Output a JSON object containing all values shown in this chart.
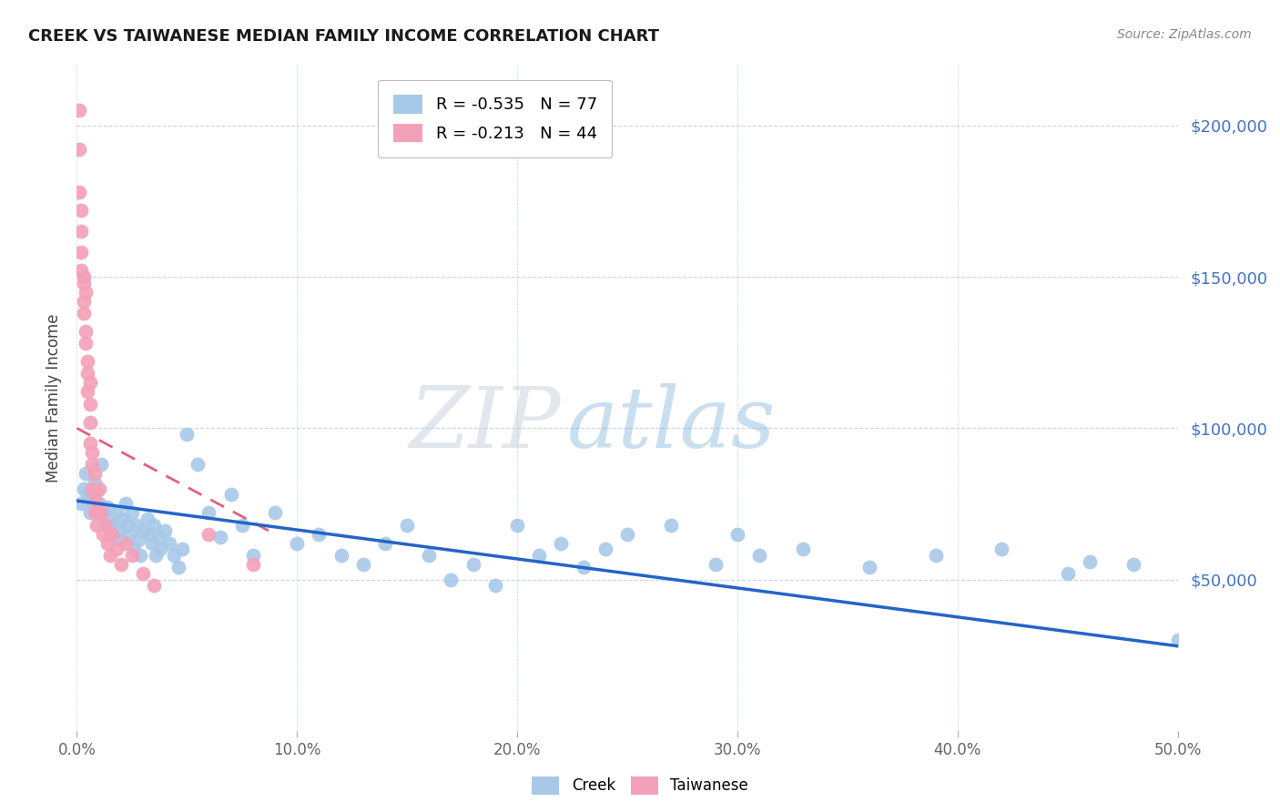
{
  "title": "CREEK VS TAIWANESE MEDIAN FAMILY INCOME CORRELATION CHART",
  "source": "Source: ZipAtlas.com",
  "ylabel": "Median Family Income",
  "xlim": [
    0.0,
    0.5
  ],
  "ylim": [
    0,
    220000
  ],
  "yticks": [
    0,
    50000,
    100000,
    150000,
    200000
  ],
  "ytick_labels": [
    "",
    "$50,000",
    "$100,000",
    "$150,000",
    "$200,000"
  ],
  "xticks": [
    0.0,
    0.1,
    0.2,
    0.3,
    0.4,
    0.5
  ],
  "xtick_labels": [
    "0.0%",
    "10.0%",
    "20.0%",
    "30.0%",
    "40.0%",
    "50.0%"
  ],
  "creek_color": "#a8c8e8",
  "taiwanese_color": "#f4a0b8",
  "creek_line_color": "#2464c8",
  "taiwanese_line_color": "#e06080",
  "creek_R": -0.535,
  "creek_N": 77,
  "taiwanese_R": -0.213,
  "taiwanese_N": 44,
  "background_color": "#ffffff",
  "grid_color": "#c8d4e4",
  "watermark_zip": "ZIP",
  "watermark_atlas": "atlas",
  "creek_x": [
    0.002,
    0.003,
    0.004,
    0.005,
    0.006,
    0.007,
    0.008,
    0.009,
    0.01,
    0.011,
    0.012,
    0.013,
    0.014,
    0.015,
    0.016,
    0.017,
    0.018,
    0.019,
    0.02,
    0.021,
    0.022,
    0.023,
    0.024,
    0.025,
    0.026,
    0.027,
    0.028,
    0.029,
    0.03,
    0.032,
    0.033,
    0.034,
    0.035,
    0.036,
    0.037,
    0.038,
    0.04,
    0.042,
    0.044,
    0.046,
    0.048,
    0.05,
    0.055,
    0.06,
    0.065,
    0.07,
    0.075,
    0.08,
    0.09,
    0.1,
    0.11,
    0.12,
    0.13,
    0.14,
    0.15,
    0.16,
    0.17,
    0.18,
    0.19,
    0.2,
    0.21,
    0.22,
    0.23,
    0.24,
    0.25,
    0.27,
    0.29,
    0.3,
    0.31,
    0.33,
    0.36,
    0.39,
    0.42,
    0.45,
    0.46,
    0.48,
    0.5
  ],
  "creek_y": [
    75000,
    80000,
    85000,
    78000,
    72000,
    76000,
    82000,
    79000,
    75000,
    88000,
    72000,
    68000,
    74000,
    70000,
    65000,
    68000,
    72000,
    66000,
    63000,
    70000,
    75000,
    68000,
    65000,
    72000,
    60000,
    68000,
    63000,
    58000,
    66000,
    70000,
    65000,
    62000,
    68000,
    58000,
    64000,
    60000,
    66000,
    62000,
    58000,
    54000,
    60000,
    98000,
    88000,
    72000,
    64000,
    78000,
    68000,
    58000,
    72000,
    62000,
    65000,
    58000,
    55000,
    62000,
    68000,
    58000,
    50000,
    55000,
    48000,
    68000,
    58000,
    62000,
    54000,
    60000,
    65000,
    68000,
    55000,
    65000,
    58000,
    60000,
    54000,
    58000,
    60000,
    52000,
    56000,
    55000,
    30000
  ],
  "taiwanese_x": [
    0.001,
    0.001,
    0.001,
    0.002,
    0.002,
    0.002,
    0.002,
    0.003,
    0.003,
    0.003,
    0.003,
    0.004,
    0.004,
    0.004,
    0.005,
    0.005,
    0.005,
    0.006,
    0.006,
    0.006,
    0.006,
    0.007,
    0.007,
    0.007,
    0.008,
    0.008,
    0.008,
    0.009,
    0.009,
    0.01,
    0.011,
    0.012,
    0.013,
    0.014,
    0.015,
    0.016,
    0.018,
    0.02,
    0.022,
    0.025,
    0.03,
    0.035,
    0.06,
    0.08
  ],
  "taiwanese_y": [
    205000,
    192000,
    178000,
    172000,
    165000,
    158000,
    152000,
    148000,
    142000,
    150000,
    138000,
    145000,
    132000,
    128000,
    122000,
    118000,
    112000,
    108000,
    115000,
    102000,
    95000,
    88000,
    80000,
    92000,
    85000,
    78000,
    72000,
    75000,
    68000,
    80000,
    72000,
    65000,
    68000,
    62000,
    58000,
    65000,
    60000,
    55000,
    62000,
    58000,
    52000,
    48000,
    65000,
    55000
  ],
  "creek_trend_x": [
    0.0,
    0.5
  ],
  "creek_trend_y": [
    76000,
    28000
  ],
  "taiwanese_trend_x": [
    0.0,
    0.09
  ],
  "taiwanese_trend_y": [
    100000,
    65000
  ]
}
